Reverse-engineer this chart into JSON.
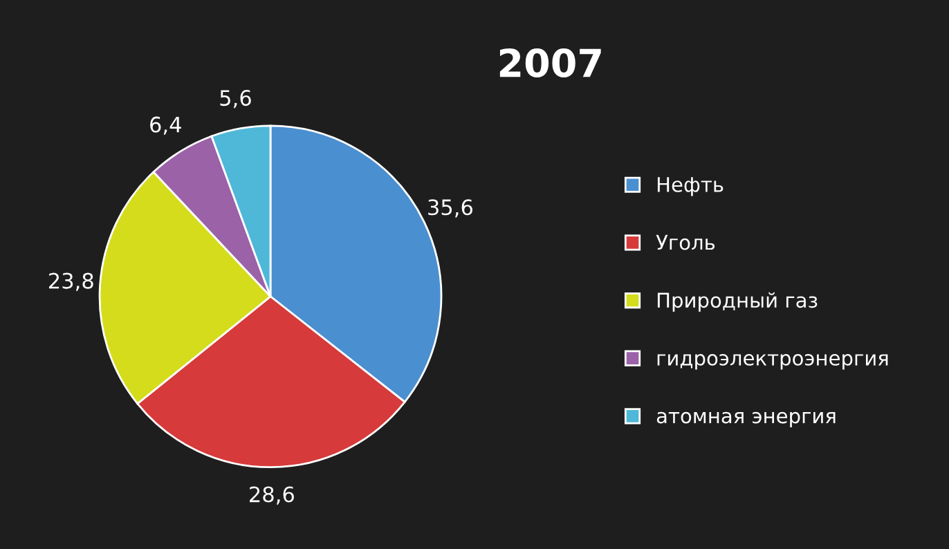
{
  "chart_data": {
    "type": "pie",
    "title": "2007",
    "categories": [
      "Нефть",
      "Уголь",
      "Природный газ",
      "гидроэлектроэнергия",
      "атомная энергия"
    ],
    "values": [
      35.6,
      28.6,
      23.8,
      6.4,
      5.6
    ],
    "value_labels": [
      "35,6",
      "28,6",
      "23,8",
      "6,4",
      "5,6"
    ],
    "colors": [
      "#4a8fd0",
      "#d63a3a",
      "#d4dc1c",
      "#9b62a8",
      "#4fb8d8"
    ],
    "legend": "right"
  }
}
